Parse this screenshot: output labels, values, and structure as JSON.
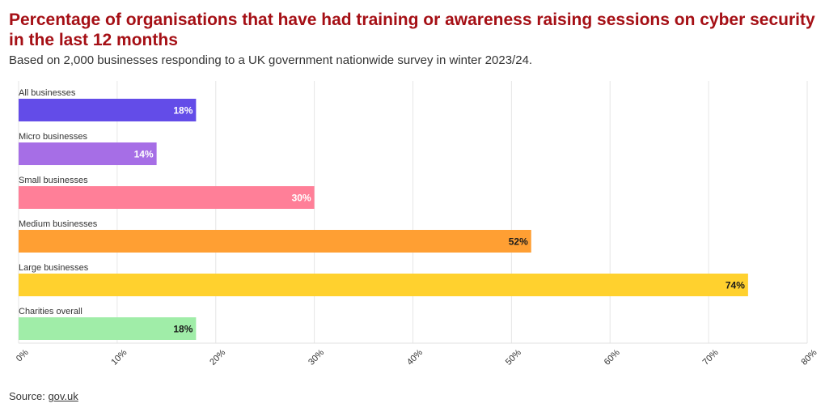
{
  "title": "Percentage of organisations that have had training or awareness raising sessions on cyber security in the last 12 months",
  "subtitle": "Based on 2,000 businesses responding to a UK government nationwide survey in winter 2023/24.",
  "source": {
    "label": "Source:",
    "link_text": "gov.uk"
  },
  "chart_data": {
    "type": "bar",
    "orientation": "horizontal",
    "categories": [
      "All businesses",
      "Micro businesses",
      "Small businesses",
      "Medium businesses",
      "Large businesses",
      "Charities overall"
    ],
    "values": [
      18,
      14,
      30,
      52,
      74,
      18
    ],
    "value_labels": [
      "18%",
      "14%",
      "30%",
      "52%",
      "74%",
      "18%"
    ],
    "colors": [
      "#634ce8",
      "#a66ee6",
      "#ff7f98",
      "#ff9f33",
      "#ffd12e",
      "#a0eda8"
    ],
    "label_colors": [
      "#ffffff",
      "#ffffff",
      "#ffffff",
      "#1a1a1a",
      "#1a1a1a",
      "#1a1a1a"
    ],
    "xlim": [
      0,
      80
    ],
    "xticks": [
      0,
      10,
      20,
      30,
      40,
      50,
      60,
      70,
      80
    ],
    "xtick_labels": [
      "0%",
      "10%",
      "20%",
      "30%",
      "40%",
      "50%",
      "60%",
      "70%",
      "80%"
    ],
    "grid": true,
    "xlabel": "",
    "ylabel": ""
  }
}
